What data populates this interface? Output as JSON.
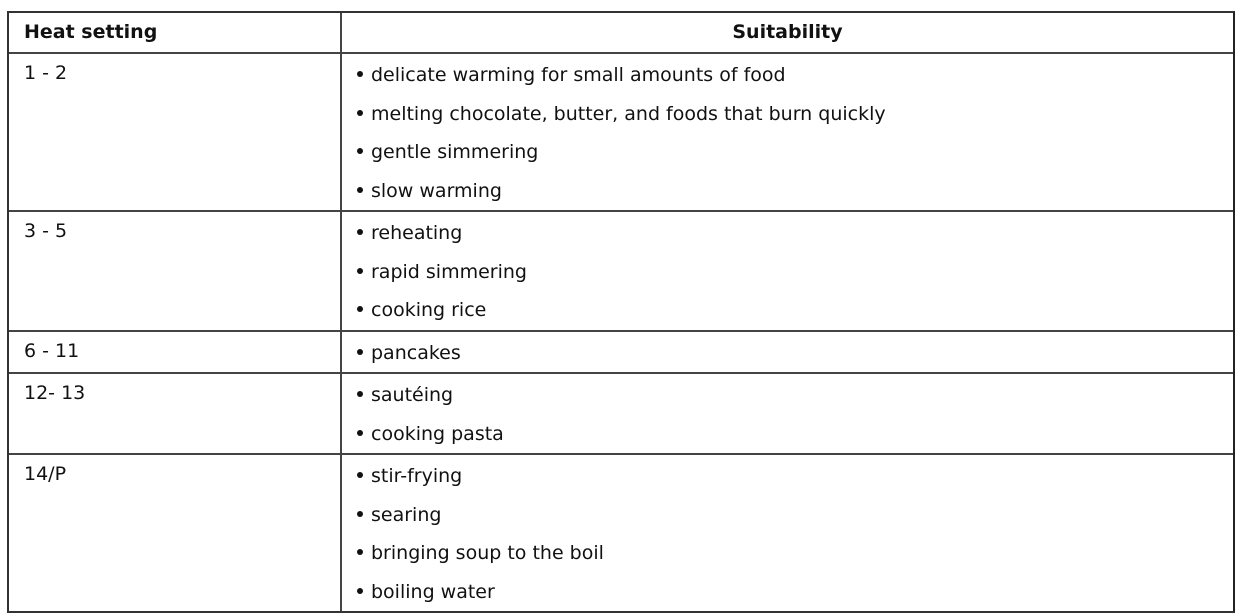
{
  "table": {
    "headers": [
      "Heat setting",
      "Suitability"
    ],
    "rows": [
      {
        "setting": "1 - 2",
        "items": [
          "delicate warming for small amounts of food",
          "melting chocolate, butter, and foods that burn quickly",
          "gentle simmering",
          "slow warming"
        ]
      },
      {
        "setting": "3 - 5",
        "items": [
          "reheating",
          "rapid simmering",
          "cooking rice"
        ]
      },
      {
        "setting": "6 - 11",
        "items": [
          "pancakes"
        ]
      },
      {
        "setting": "12- 13",
        "items": [
          "sautéing",
          "cooking pasta"
        ]
      },
      {
        "setting": "14/P",
        "items": [
          "stir-frying",
          "searing",
          "bringing soup to the boil",
          "boiling water"
        ]
      }
    ]
  }
}
